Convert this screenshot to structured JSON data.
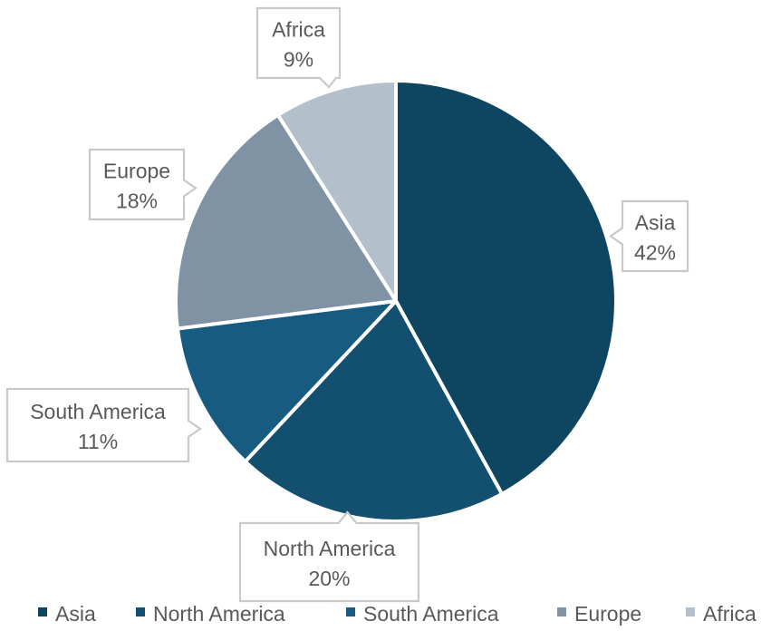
{
  "chart_data": {
    "type": "pie",
    "title": "",
    "start_angle_deg": 0,
    "direction": "clockwise",
    "slices": [
      {
        "label": "Asia",
        "value": 42,
        "value_label": "42%",
        "color": "#0e4560"
      },
      {
        "label": "North America",
        "value": 20,
        "value_label": "20%",
        "color": "#134f6e"
      },
      {
        "label": "South America",
        "value": 11,
        "value_label": "11%",
        "color": "#175b80"
      },
      {
        "label": "Europe",
        "value": 18,
        "value_label": "18%",
        "color": "#7f93a5"
      },
      {
        "label": "Africa",
        "value": 9,
        "value_label": "9%",
        "color": "#b3bfcb"
      }
    ],
    "data_labels": "callouts",
    "legend": {
      "position": "bottom",
      "marker": "square"
    }
  }
}
